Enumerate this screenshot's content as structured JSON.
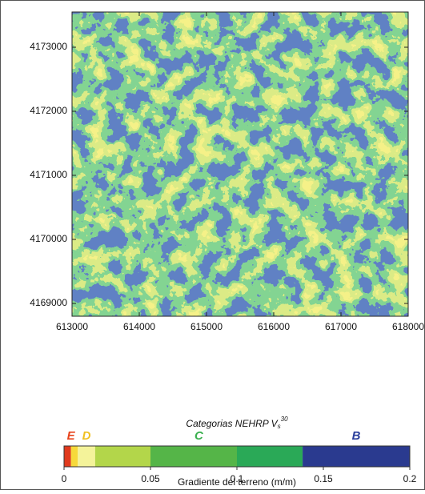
{
  "map": {
    "xlim": [
      613000,
      618000
    ],
    "ylim": [
      4168800,
      4173550
    ],
    "xticks": [
      613000,
      614000,
      615000,
      616000,
      617000,
      618000
    ],
    "yticks": [
      4169000,
      4170000,
      4171000,
      4172000,
      4173000
    ]
  },
  "legend": {
    "title": "Categorias NEHRP V",
    "title_sub": "s",
    "title_sup": "30",
    "xlabel": "Gradiente del terreno (m/m)",
    "xlim": [
      0,
      0.2
    ],
    "xticks": [
      0,
      0.05,
      0.1,
      0.15,
      0.2
    ],
    "segments": [
      {
        "from": 0,
        "to": 0.004,
        "color": "#e03a1e"
      },
      {
        "from": 0.004,
        "to": 0.008,
        "color": "#f6d93a"
      },
      {
        "from": 0.008,
        "to": 0.018,
        "color": "#f4f39a"
      },
      {
        "from": 0.018,
        "to": 0.05,
        "color": "#b3d64a"
      },
      {
        "from": 0.05,
        "to": 0.1,
        "color": "#55b548"
      },
      {
        "from": 0.1,
        "to": 0.138,
        "color": "#2aa957"
      },
      {
        "from": 0.138,
        "to": 0.2,
        "color": "#2a3a8f"
      }
    ],
    "categories": [
      {
        "label": "E",
        "range": [
          0,
          0.008
        ],
        "color": "#e8441c"
      },
      {
        "label": "D",
        "range": [
          0.008,
          0.018
        ],
        "color": "#f0c020"
      },
      {
        "label": "C",
        "range": [
          0.018,
          0.138
        ],
        "color": "#3cb050"
      },
      {
        "label": "B",
        "range": [
          0.138,
          0.2
        ],
        "color": "#2b3f9c"
      }
    ]
  }
}
